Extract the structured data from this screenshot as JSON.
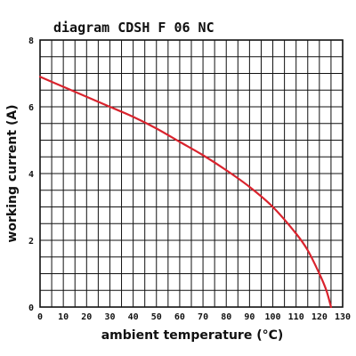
{
  "colors": {
    "grid": "#111111",
    "frame": "#111111",
    "curve": "#d9232d",
    "background": "#ffffff"
  },
  "chart_data": {
    "type": "line",
    "title": "diagram CDSH F 06 NC",
    "xlabel": "ambient temperature (°C)",
    "ylabel": "working current (A)",
    "xlim": [
      0,
      130
    ],
    "ylim": [
      0,
      8
    ],
    "grid": true,
    "x_tick_labels": [
      "0",
      "10",
      "20",
      "30",
      "40",
      "50",
      "60",
      "70",
      "80",
      "90",
      "100",
      "110",
      "120",
      "130"
    ],
    "y_tick_labels": [
      "0",
      "2",
      "4",
      "6",
      "8"
    ],
    "series": [
      {
        "name": "",
        "x": [
          0,
          10,
          20,
          30,
          40,
          50,
          60,
          70,
          80,
          90,
          100,
          110,
          115,
          120,
          123,
          125
        ],
        "y": [
          6.9,
          6.6,
          6.3,
          6.0,
          5.7,
          5.35,
          4.95,
          4.55,
          4.1,
          3.6,
          3.0,
          2.2,
          1.7,
          1.0,
          0.5,
          0.0
        ]
      }
    ]
  }
}
